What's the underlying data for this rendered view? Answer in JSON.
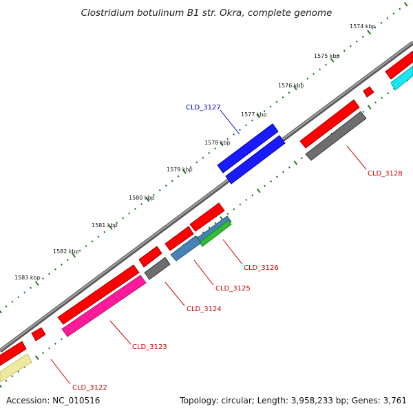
{
  "title": "Clostridium botulinum B1 str. Okra, complete genome",
  "footer": {
    "accession": "Accession: NC_010516",
    "topology": "Topology: circular; Length: 3,958,233 bp; Genes: 3,761"
  },
  "kbp_labels": [
    "1574 kbp",
    "1575 kbp",
    "1576 kbp",
    "1577 kbp",
    "1578 kbp",
    "1579 kbp",
    "1580 kbp",
    "1581 kbp",
    "1582 kbp",
    "1583 kbp"
  ],
  "genes": [
    {
      "name": "CLD_3127",
      "color": "#0000cc"
    },
    {
      "name": "CLD_3128",
      "color": "#cc0000"
    },
    {
      "name": "CLD_3126",
      "color": "#cc0000"
    },
    {
      "name": "CLD_3125",
      "color": "#cc0000"
    },
    {
      "name": "CLD_3124",
      "color": "#cc0000"
    },
    {
      "name": "CLD_3123",
      "color": "#cc0000"
    },
    {
      "name": "CLD_3122",
      "color": "#cc0000"
    }
  ],
  "colors": {
    "backbone": "#8c8c8c",
    "tick_dots": "#1f7a1f",
    "cds_red": "#ff0000",
    "blue": "#1a1aff",
    "gray": "#6e6e6e",
    "magenta": "#ff1a9c",
    "steel_blue": "#4682b4",
    "green": "#33bb33",
    "cyan": "#19e6f0",
    "khaki": "#eee8a0"
  }
}
